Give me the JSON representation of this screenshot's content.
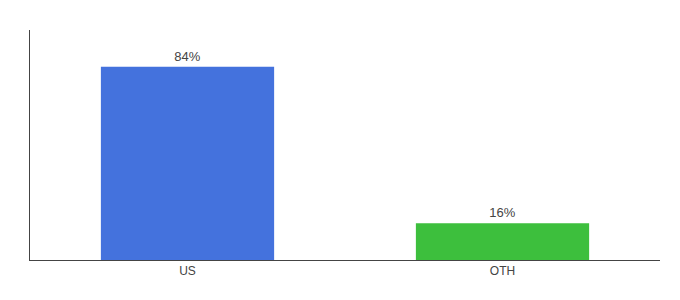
{
  "chart_data": {
    "type": "bar",
    "categories": [
      "US",
      "OTH"
    ],
    "values": [
      84,
      16
    ],
    "value_labels": [
      "84%",
      "16%"
    ],
    "colors": [
      "#4472dd",
      "#3dbf3d"
    ],
    "ylim": [
      0,
      100
    ],
    "grid": false,
    "data_labels": true,
    "tick_labels": "x"
  }
}
